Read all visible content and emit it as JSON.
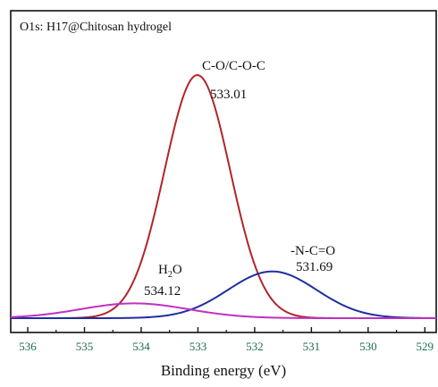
{
  "chart_data": {
    "type": "line",
    "title": "O1s: H17@Chitosan hydrogel",
    "xlabel": "Binding energy (eV)",
    "ylabel": "",
    "x_reversed": true,
    "xlim": [
      536.3,
      528.8
    ],
    "ylim": [
      0,
      1
    ],
    "x_ticks": [
      536,
      535,
      534,
      533,
      532,
      531,
      530,
      529
    ],
    "x_tick_labels": [
      "536",
      "535",
      "534",
      "533",
      "532",
      "531",
      "530",
      "529"
    ],
    "grid": false,
    "legend": "none",
    "series": [
      {
        "name": "",
        "color": "#b0252b",
        "center": 533.01,
        "amplitude": 0.853,
        "sigma": 0.58,
        "peak_label": "C-O/C-O-C",
        "peak_value": "533.01"
      },
      {
        "name": "",
        "color": "#1f2f9e",
        "center": 531.69,
        "amplitude": 0.164,
        "sigma": 0.78,
        "peak_label": "-N-C=O",
        "peak_value": "531.69"
      },
      {
        "name": "",
        "color": "#c02fc0",
        "center": 534.12,
        "amplitude": 0.052,
        "sigma": 0.95,
        "peak_label": "H₂O",
        "peak_value": "534.12"
      }
    ],
    "baseline": 0.012
  },
  "annotations": {
    "co_label": "C-O/C-O-C",
    "co_value": "533.01",
    "nco_label": "-N-C=O",
    "nco_value": "531.69",
    "h2o_main": "H",
    "h2o_sub": "2",
    "h2o_tail": "O",
    "h2o_value": "534.12"
  }
}
